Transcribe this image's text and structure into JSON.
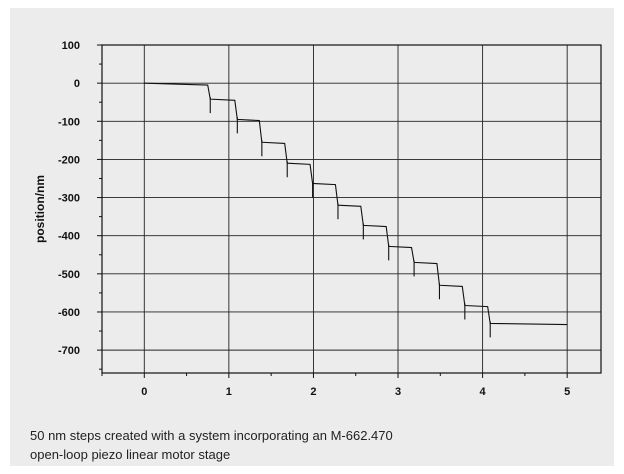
{
  "chart_data": {
    "type": "line",
    "title": "",
    "xlabel": "",
    "ylabel": "position/nm",
    "xlim": [
      -0.5,
      5.4
    ],
    "ylim": [
      -760,
      100
    ],
    "x_ticks": [
      0,
      1,
      2,
      3,
      4,
      5
    ],
    "y_ticks": [
      100,
      0,
      -100,
      -200,
      -300,
      -400,
      -500,
      -600,
      -700
    ],
    "x_tick_labels": [
      "0",
      "1",
      "2",
      "3",
      "4",
      "5"
    ],
    "y_tick_labels": [
      "100",
      "0",
      "-100",
      "-200",
      "-300",
      "-400",
      "-500",
      "-600",
      "-700"
    ],
    "grid": true,
    "series": [
      {
        "x": [
          0,
          0.75,
          0.78,
          1.07,
          1.1,
          1.36,
          1.39,
          1.66,
          1.69,
          1.96,
          1.99,
          2.26,
          2.29,
          2.56,
          2.59,
          2.86,
          2.89,
          3.16,
          3.19,
          3.46,
          3.49,
          3.76,
          3.79,
          4.06,
          4.09,
          5.0
        ],
        "y": [
          0,
          -5,
          -42,
          -45,
          -95,
          -98,
          -155,
          -158,
          -210,
          -213,
          -263,
          -266,
          -320,
          -323,
          -373,
          -376,
          -428,
          -431,
          -470,
          -473,
          -530,
          -533,
          -583,
          -586,
          -630,
          -633
        ]
      }
    ]
  },
  "caption": {
    "line1": "50 nm steps created with a system incorporating an M-662.470",
    "line2": "open-loop piezo linear motor stage"
  }
}
